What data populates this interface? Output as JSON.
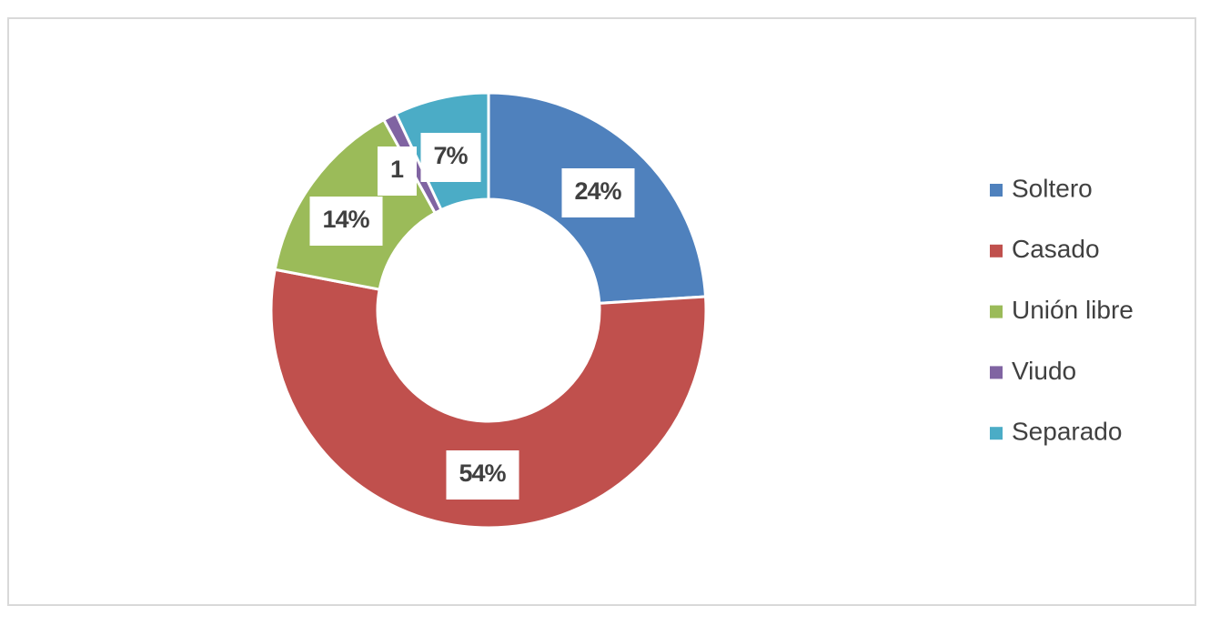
{
  "chart_data": {
    "type": "donut",
    "categories": [
      "Soltero",
      "Casado",
      "Unión libre",
      "Viudo",
      "Separado"
    ],
    "values": [
      24,
      54,
      14,
      1,
      7
    ],
    "value_labels": [
      "24%",
      "54%",
      "14%",
      "1",
      "7%"
    ],
    "colors": [
      "#4f81bd",
      "#c0504d",
      "#9bbb59",
      "#8064a2",
      "#4bacc6"
    ],
    "legend": "right"
  }
}
